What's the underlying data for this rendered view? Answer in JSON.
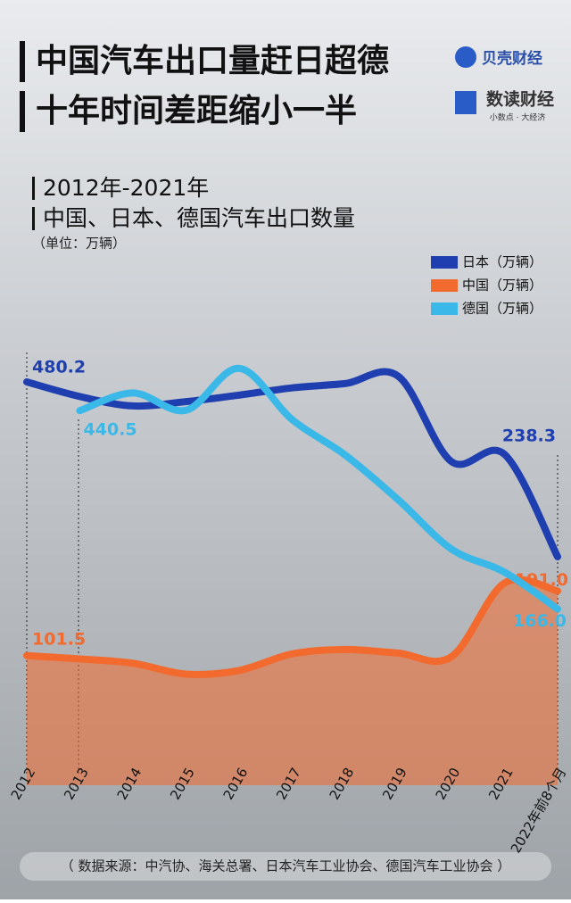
{
  "header": {
    "title_lines": [
      "中国汽车出口量赶日超德",
      "十年时间差距缩小一半"
    ],
    "brand1": "贝壳财经",
    "brand2": "数读财经",
    "brand2_slogan": "小数点 · 大经济"
  },
  "chart_data": {
    "type": "line",
    "subtitle_lines": [
      "2012年-2021年",
      "中国、日本、德国汽车出口数量"
    ],
    "unit": "（单位：万辆）",
    "categories": [
      "2012",
      "2013",
      "2014",
      "2015",
      "2016",
      "2017",
      "2018",
      "2019",
      "2020",
      "2021",
      "2022年前8个月"
    ],
    "series": [
      {
        "name": "日本（万辆）",
        "color": "#1f3fb0",
        "values": [
          480.2,
          460,
          447,
          453,
          462,
          472,
          478,
          488,
          370,
          380,
          238.3
        ]
      },
      {
        "name": "中国（万辆）",
        "color": "#f26a2e",
        "values": [
          101.5,
          97,
          91,
          76,
          81,
          104,
          110,
          105,
          100,
          202,
          191.0
        ],
        "value_labels": [
          "101.5",
          null,
          null,
          null,
          null,
          null,
          null,
          null,
          null,
          null,
          "191.0"
        ]
      },
      {
        "name": "德国（万辆）",
        "color": "#3ab8e8",
        "values": [
          null,
          440.5,
          465,
          441,
          499,
          428,
          379,
          317,
          249,
          217,
          166.0
        ],
        "value_labels": [
          null,
          "440.5",
          null,
          null,
          null,
          null,
          null,
          null,
          null,
          null,
          "166.0"
        ]
      }
    ],
    "source": "（ 数据来源：中汽协、海关总署、日本汽车工业协会、德国汽车工业协会 ）"
  }
}
